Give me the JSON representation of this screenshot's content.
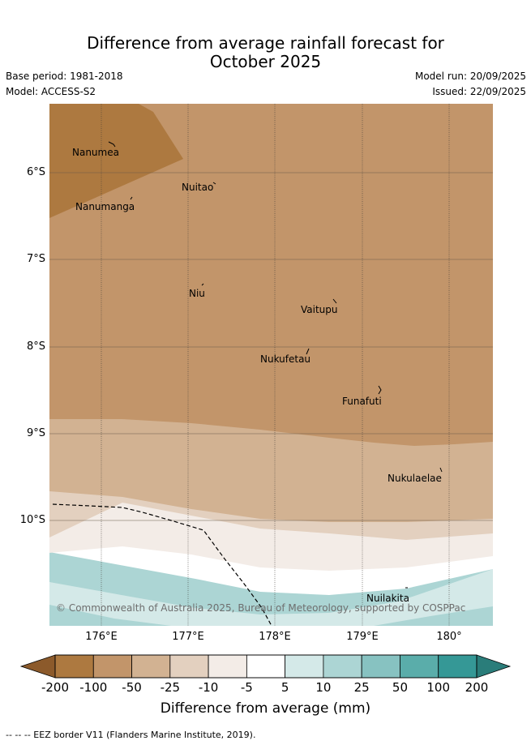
{
  "title": {
    "line1": "Difference from average rainfall forecast for",
    "line2": "October 2025"
  },
  "meta": {
    "base_period": "Base period: 1981-2018",
    "model": "Model: ACCESS-S2",
    "model_run": "Model run: 20/09/2025",
    "issued": "Issued: 22/09/2025"
  },
  "map": {
    "lat_ticks": [
      "6°S",
      "7°S",
      "8°S",
      "9°S",
      "10°S"
    ],
    "lon_ticks": [
      "176°E",
      "177°E",
      "178°E",
      "179°E",
      "180°"
    ],
    "places": [
      "Nanumea",
      "Nuitao",
      "Nanumanga",
      "Niu",
      "Vaitupu",
      "Nukufetau",
      "Funafuti",
      "Nukulaelae",
      "Nuilakita"
    ],
    "copyright": "© Commonwealth of Australia 2025, Bureau of Meteorology, supported by COSPPac"
  },
  "colorbar": {
    "labels": [
      "-200",
      "-100",
      "-50",
      "-25",
      "-10",
      "-5",
      "5",
      "10",
      "25",
      "50",
      "100",
      "200"
    ],
    "colors": [
      "#8c5a2b",
      "#ad7940",
      "#c2956a",
      "#d2b292",
      "#e3d0bf",
      "#f3ece7",
      "#ffffff",
      "#d4e9e8",
      "#acd5d4",
      "#87c2c1",
      "#5aadaa",
      "#359896",
      "#2a7d7a"
    ],
    "title": "Difference from average (mm)"
  },
  "legend": {
    "eez": "--  --  -- EEZ border V11 (Flanders Marine Institute, 2019)."
  }
}
